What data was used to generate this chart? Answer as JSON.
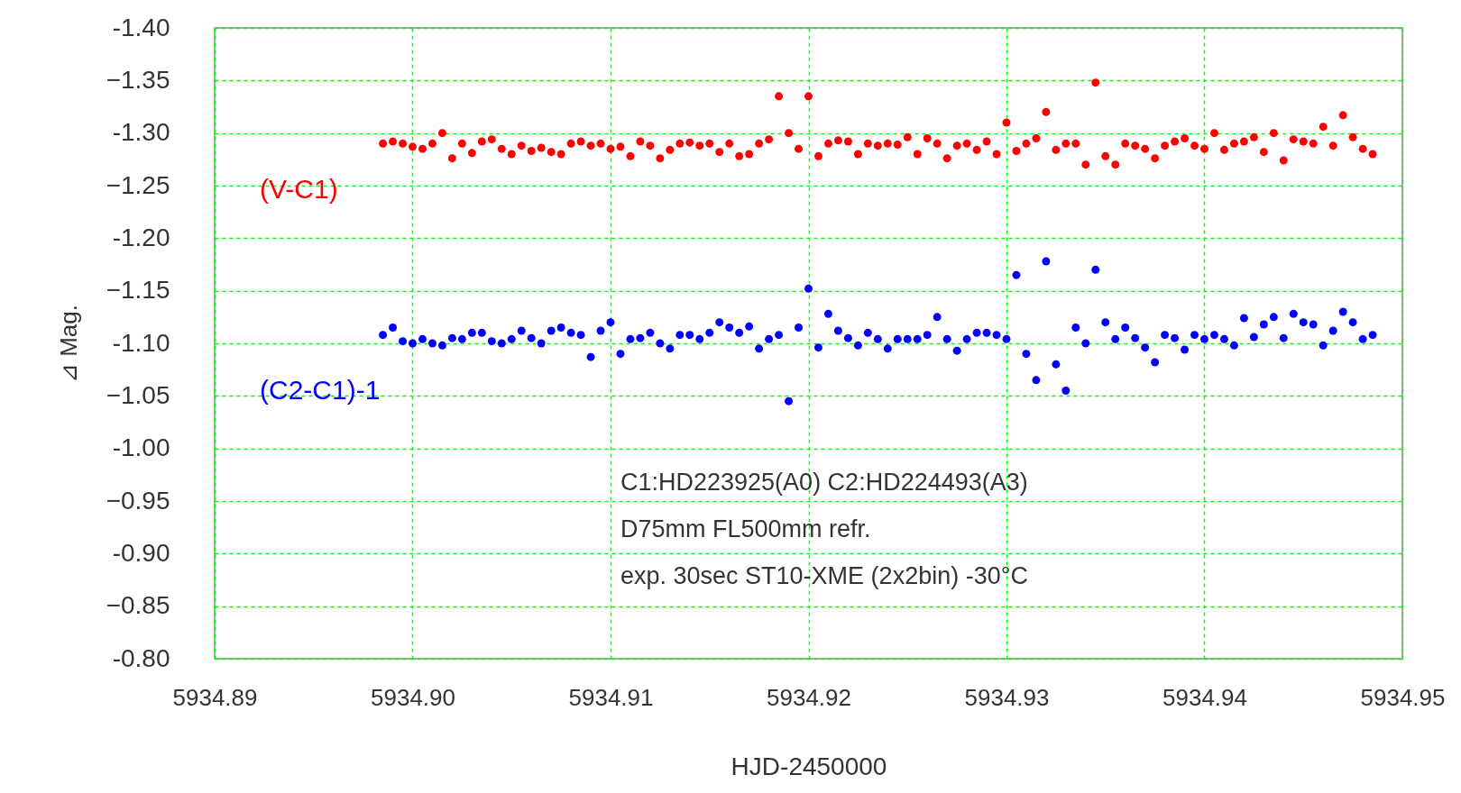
{
  "chart_data": {
    "type": "scatter",
    "xlabel": "HJD-2450000",
    "ylabel": "⊿ Mag.",
    "x": [
      5934.8985,
      5934.899,
      5934.8995,
      5934.9,
      5934.9005,
      5934.901,
      5934.9015,
      5934.902,
      5934.9025,
      5934.903,
      5934.9035,
      5934.904,
      5934.9045,
      5934.905,
      5934.9055,
      5934.906,
      5934.9065,
      5934.907,
      5934.9075,
      5934.908,
      5934.9085,
      5934.909,
      5934.9095,
      5934.91,
      5934.9105,
      5934.911,
      5934.9115,
      5934.912,
      5934.9125,
      5934.913,
      5934.9135,
      5934.914,
      5934.9145,
      5934.915,
      5934.9155,
      5934.916,
      5934.9165,
      5934.917,
      5934.9175,
      5934.918,
      5934.9185,
      5934.919,
      5934.9195,
      5934.92,
      5934.9205,
      5934.921,
      5934.9215,
      5934.922,
      5934.9225,
      5934.923,
      5934.9235,
      5934.924,
      5934.9245,
      5934.925,
      5934.9255,
      5934.926,
      5934.9265,
      5934.927,
      5934.9275,
      5934.928,
      5934.9285,
      5934.929,
      5934.9295,
      5934.93,
      5934.9305,
      5934.931,
      5934.9315,
      5934.932,
      5934.9325,
      5934.933,
      5934.9335,
      5934.934,
      5934.9345,
      5934.935,
      5934.9355,
      5934.936,
      5934.9365,
      5934.937,
      5934.9375,
      5934.938,
      5934.9385,
      5934.939,
      5934.9395,
      5934.94,
      5934.9405,
      5934.941,
      5934.9415,
      5934.942,
      5934.9425,
      5934.943,
      5934.9435,
      5934.944,
      5934.9445,
      5934.945,
      5934.9455,
      5934.946,
      5934.9465,
      5934.947,
      5934.9475,
      5934.948,
      5934.9485
    ],
    "series": [
      {
        "name": "(V-C1)",
        "color": "#ff0000",
        "values": [
          -1.29,
          -1.292,
          -1.29,
          -1.287,
          -1.285,
          -1.29,
          -1.3,
          -1.276,
          -1.29,
          -1.281,
          -1.292,
          -1.294,
          -1.285,
          -1.28,
          -1.288,
          -1.283,
          -1.286,
          -1.282,
          -1.28,
          -1.29,
          -1.292,
          -1.288,
          -1.29,
          -1.285,
          -1.287,
          -1.278,
          -1.292,
          -1.288,
          -1.276,
          -1.284,
          -1.29,
          -1.291,
          -1.288,
          -1.29,
          -1.282,
          -1.29,
          -1.278,
          -1.28,
          -1.29,
          -1.294,
          -1.335,
          -1.3,
          -1.285,
          -1.335,
          -1.278,
          -1.29,
          -1.293,
          -1.292,
          -1.28,
          -1.29,
          -1.288,
          -1.29,
          -1.289,
          -1.296,
          -1.28,
          -1.295,
          -1.29,
          -1.276,
          -1.288,
          -1.29,
          -1.284,
          -1.292,
          -1.28,
          -1.31,
          -1.283,
          -1.29,
          -1.295,
          -1.32,
          -1.284,
          -1.29,
          -1.29,
          -1.27,
          -1.348,
          -1.278,
          -1.27,
          -1.29,
          -1.288,
          -1.285,
          -1.276,
          -1.288,
          -1.292,
          -1.295,
          -1.288,
          -1.285,
          -1.3,
          -1.284,
          -1.29,
          -1.292,
          -1.296,
          -1.282,
          -1.3,
          -1.274,
          -1.294,
          -1.292,
          -1.29,
          -1.306,
          -1.288,
          -1.317,
          -1.296,
          -1.285,
          -1.28
        ]
      },
      {
        "name": "(C2-C1)-1",
        "color": "#0000ff",
        "values": [
          -1.108,
          -1.115,
          -1.102,
          -1.1,
          -1.104,
          -1.1,
          -1.098,
          -1.105,
          -1.104,
          -1.11,
          -1.11,
          -1.102,
          -1.1,
          -1.104,
          -1.112,
          -1.105,
          -1.1,
          -1.112,
          -1.115,
          -1.11,
          -1.108,
          -1.087,
          -1.112,
          -1.12,
          -1.09,
          -1.104,
          -1.105,
          -1.11,
          -1.1,
          -1.095,
          -1.108,
          -1.108,
          -1.104,
          -1.11,
          -1.12,
          -1.115,
          -1.11,
          -1.116,
          -1.095,
          -1.104,
          -1.108,
          -1.045,
          -1.115,
          -1.152,
          -1.096,
          -1.128,
          -1.112,
          -1.105,
          -1.098,
          -1.11,
          -1.104,
          -1.095,
          -1.104,
          -1.104,
          -1.104,
          -1.108,
          -1.125,
          -1.104,
          -1.093,
          -1.104,
          -1.11,
          -1.11,
          -1.108,
          -1.104,
          -1.165,
          -1.09,
          -1.065,
          -1.178,
          -1.08,
          -1.055,
          -1.115,
          -1.1,
          -1.17,
          -1.12,
          -1.104,
          -1.115,
          -1.105,
          -1.096,
          -1.082,
          -1.108,
          -1.105,
          -1.094,
          -1.108,
          -1.104,
          -1.108,
          -1.104,
          -1.098,
          -1.124,
          -1.106,
          -1.118,
          -1.125,
          -1.105,
          -1.128,
          -1.12,
          -1.118,
          -1.098,
          -1.112,
          -1.13,
          -1.12,
          -1.104,
          -1.108
        ]
      }
    ],
    "xlim": [
      5934.89,
      5934.95
    ],
    "xticks": [
      5934.89,
      {
        "value": 5934.9,
        "label": "5934.90"
      },
      5934.91,
      5934.92,
      5934.93,
      5934.94,
      5934.95
    ],
    "ylim": [
      -0.8,
      -1.4
    ],
    "yticks": [
      {
        "value": -1.4,
        "label": "-1.40"
      },
      -1.35,
      {
        "value": -1.3,
        "label": "-1.30"
      },
      -1.25,
      {
        "value": -1.2,
        "label": "-1.20"
      },
      -1.15,
      {
        "value": -1.1,
        "label": "-1.10"
      },
      -1.05,
      {
        "value": -1.0,
        "label": "-1.00"
      },
      -0.95,
      {
        "value": -0.9,
        "label": "-0.90"
      },
      -0.85,
      {
        "value": -0.8,
        "label": "-0.80"
      }
    ],
    "annotations": [
      "C1:HD223925(A0)  C2:HD224493(A3)",
      "D75mm  FL500mm  refr.",
      "exp. 30sec   ST10-XME (2x2bin)   -30°C"
    ],
    "grid": true,
    "marker": "circle"
  }
}
